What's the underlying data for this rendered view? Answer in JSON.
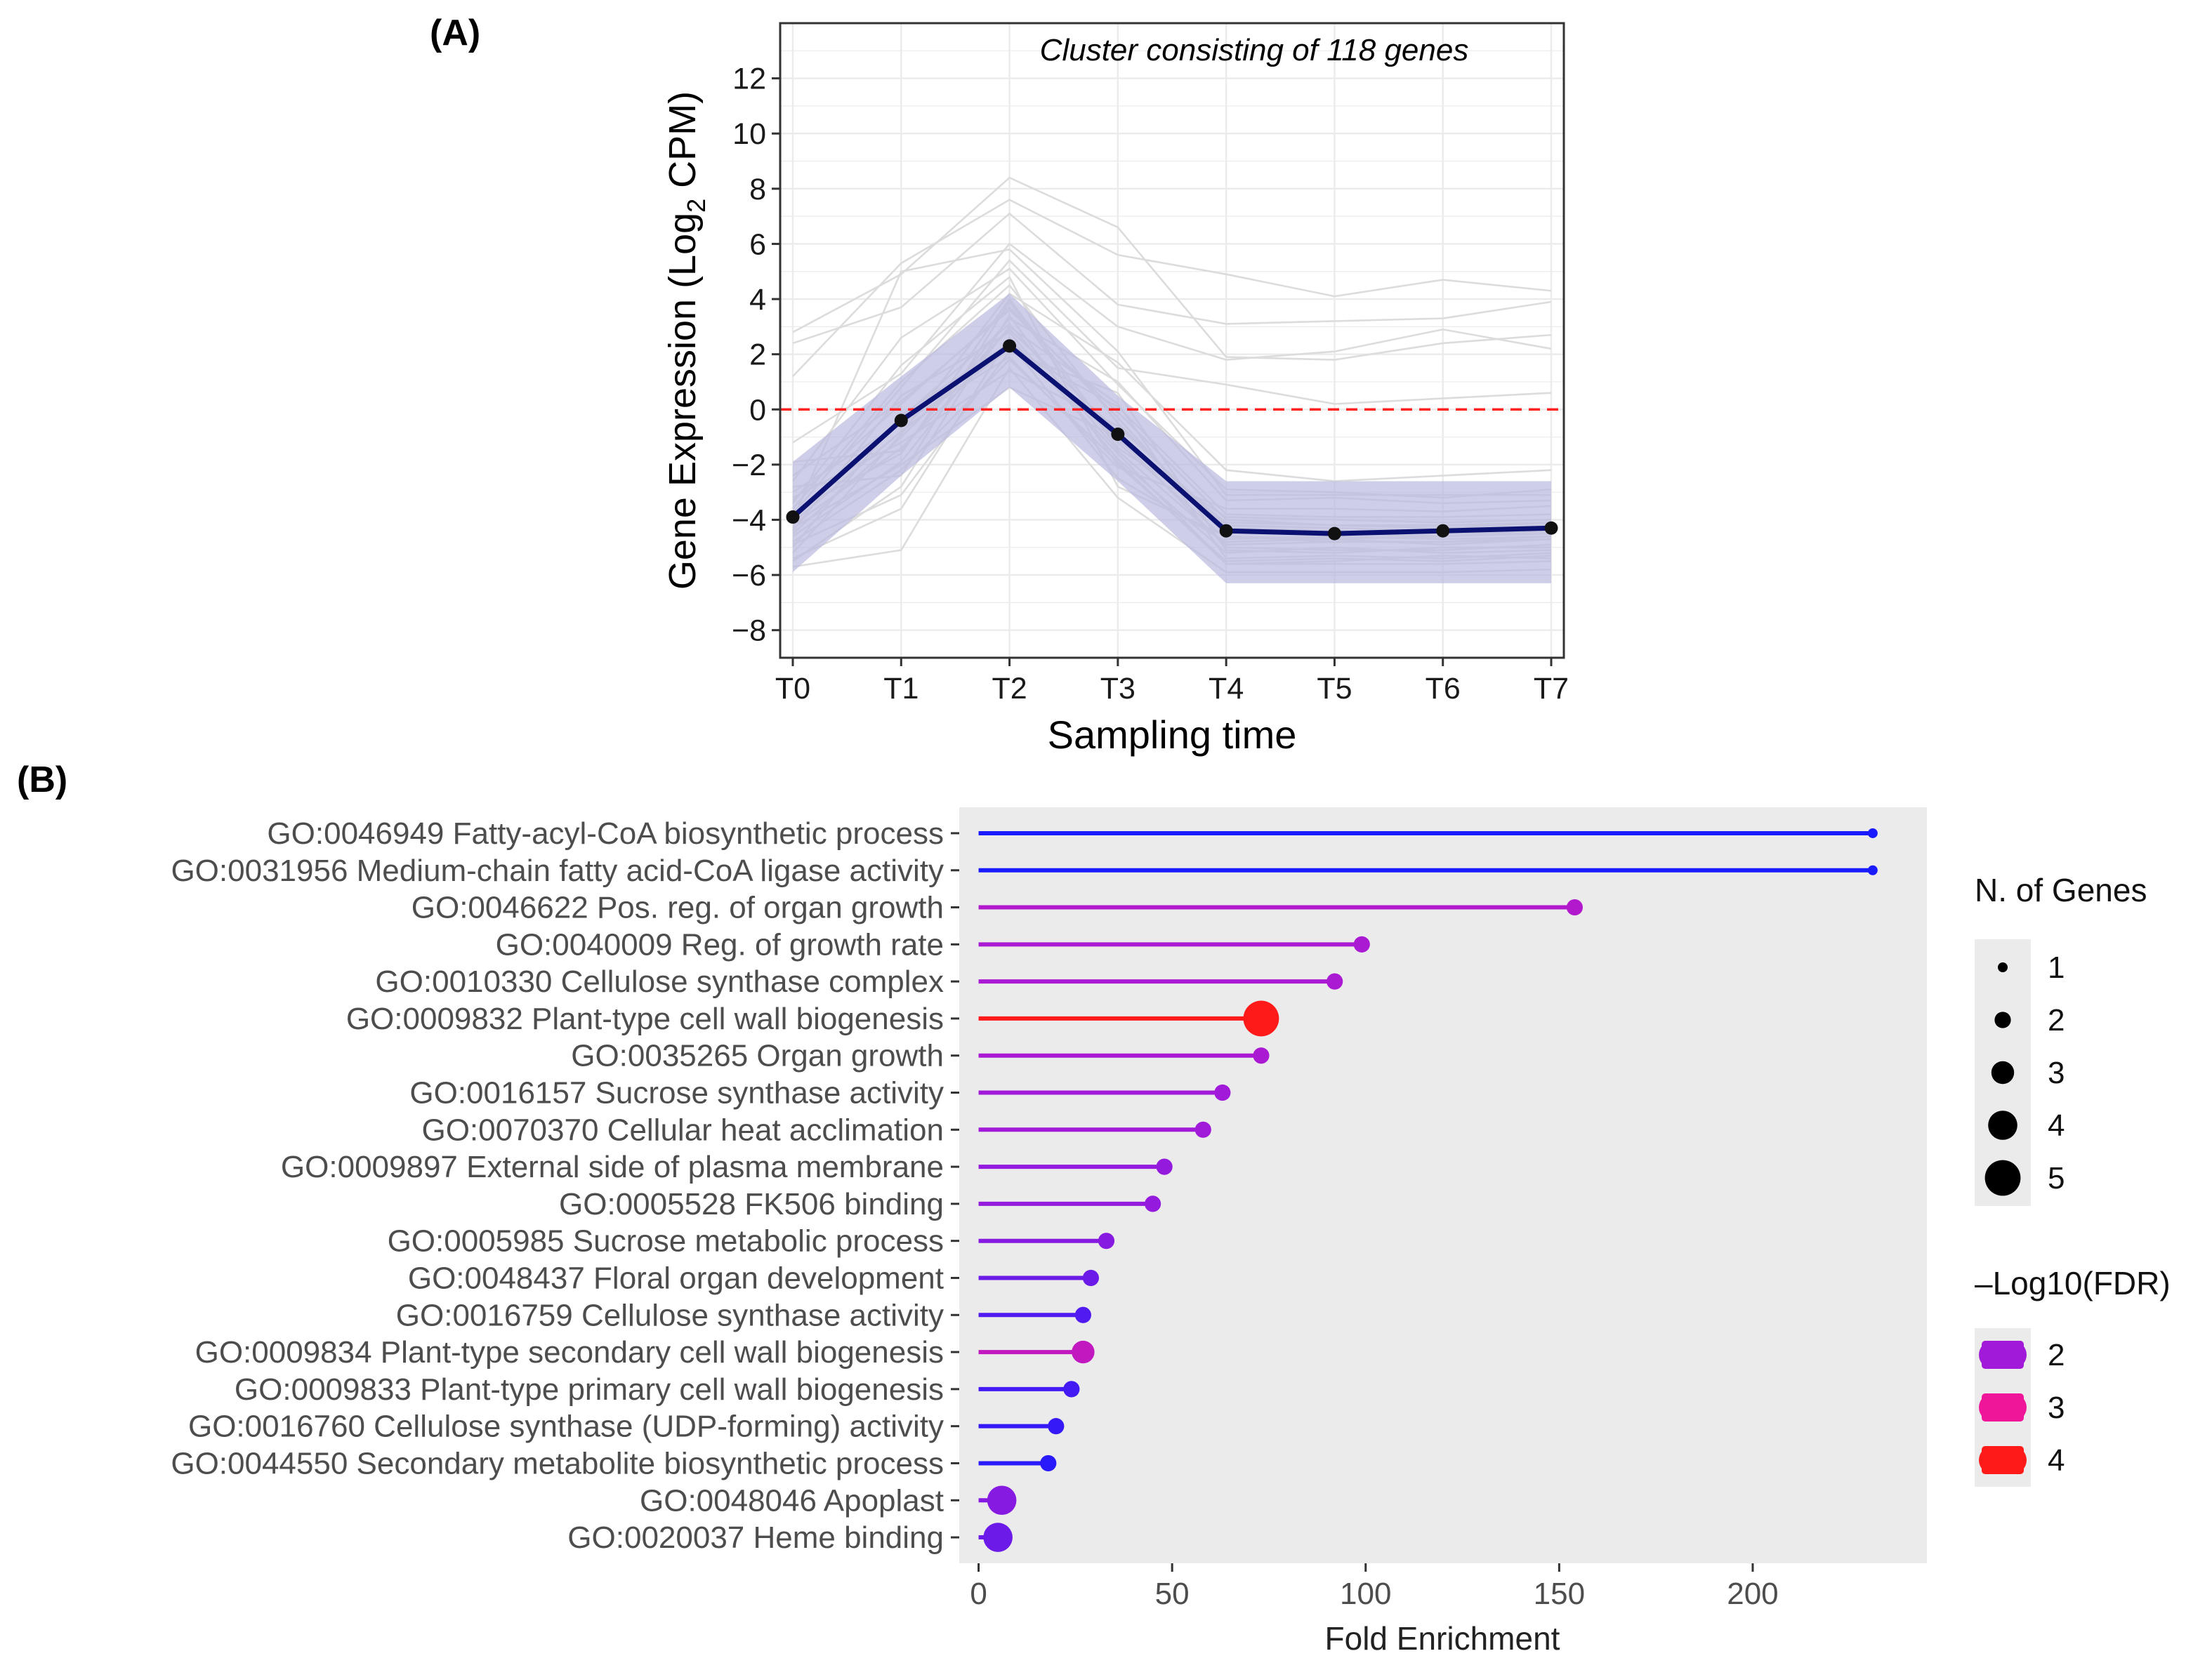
{
  "chart_data": [
    {
      "panel_label": "(A)",
      "type": "line",
      "title": "Cluster consisting of 118 genes",
      "xlabel": "Sampling time",
      "ylabel_prefix": "Gene Expression (Log",
      "ylabel_sub": "2",
      "ylabel_suffix": " CPM)",
      "categories": [
        "T0",
        "T1",
        "T2",
        "T3",
        "T4",
        "T5",
        "T6",
        "T7"
      ],
      "ylim": [
        -9,
        14
      ],
      "yticks": [
        -8,
        -6,
        -4,
        -2,
        0,
        2,
        4,
        6,
        8,
        10,
        12
      ],
      "grid": true,
      "reference_line": {
        "y": 0,
        "color": "#ff2222",
        "style": "dashed"
      },
      "mean_series": {
        "name": "Cluster mean",
        "color": "#0b1170",
        "values": [
          -3.9,
          -0.4,
          2.3,
          -0.9,
          -4.4,
          -4.5,
          -4.4,
          -4.3
        ]
      },
      "band": {
        "color": "#b9b9e0",
        "lower": [
          -5.9,
          -2.4,
          0.8,
          -2.6,
          -6.3,
          -6.3,
          -6.3,
          -6.3
        ],
        "upper": [
          -1.9,
          1.2,
          4.2,
          0.5,
          -2.6,
          -2.6,
          -2.6,
          -2.6
        ]
      },
      "gene_lines": {
        "color": "#dcdcdc",
        "series": [
          [
            2.8,
            4.9,
            8.4,
            6.6,
            1.9,
            1.8,
            2.4,
            2.7
          ],
          [
            1.2,
            5.3,
            7.6,
            5.6,
            4.9,
            4.1,
            4.7,
            4.3
          ],
          [
            2.4,
            3.7,
            7.1,
            3.8,
            3.1,
            3.2,
            3.3,
            3.9
          ],
          [
            -1.2,
            1.3,
            6.0,
            3.0,
            1.8,
            2.1,
            2.9,
            2.2
          ],
          [
            -3.8,
            0.8,
            5.4,
            1.5,
            0.9,
            0.2,
            0.4,
            0.6
          ],
          [
            -4.0,
            5.0,
            5.8,
            2.1,
            -3.1,
            -3.1,
            -3.1,
            -3.1
          ],
          [
            -5.2,
            -0.9,
            4.2,
            1.7,
            -2.2,
            -2.6,
            -2.4,
            -2.2
          ],
          [
            -2.4,
            0.3,
            3.6,
            -0.1,
            -4.0,
            -4.2,
            -4.3,
            -4.1
          ],
          [
            -4.6,
            -1.9,
            3.0,
            0.2,
            -5.4,
            -5.3,
            -5.4,
            -5.2
          ],
          [
            -5.4,
            -3.6,
            2.6,
            -1.6,
            -5.6,
            -5.6,
            -5.6,
            -5.5
          ],
          [
            -3.0,
            -0.5,
            1.9,
            -2.1,
            -3.6,
            -3.6,
            -3.7,
            -3.5
          ],
          [
            -4.3,
            -2.0,
            0.8,
            -1.0,
            -5.0,
            -5.1,
            -5.1,
            -4.9
          ],
          [
            -3.4,
            1.6,
            4.8,
            -2.8,
            -4.6,
            -4.8,
            -4.8,
            -4.6
          ],
          [
            -5.7,
            -5.1,
            1.5,
            -3.2,
            -5.9,
            -5.9,
            -5.9,
            -5.8
          ],
          [
            -1.9,
            -1.5,
            3.3,
            1.0,
            -3.3,
            -3.2,
            -3.4,
            -3.3
          ],
          [
            -4.9,
            -3.1,
            2.1,
            0.6,
            -5.1,
            -5.2,
            -5.0,
            -5.0
          ],
          [
            -3.6,
            1.0,
            4.5,
            -0.5,
            -4.3,
            -4.4,
            -4.5,
            -4.4
          ],
          [
            -5.0,
            -0.2,
            2.4,
            -2.5,
            -4.8,
            -4.7,
            -4.9,
            -4.7
          ],
          [
            -2.8,
            -2.4,
            3.9,
            -1.4,
            -3.9,
            -4.0,
            -4.1,
            -4.0
          ],
          [
            -4.4,
            0.5,
            2.8,
            -1.8,
            -5.2,
            -5.0,
            -5.2,
            -5.1
          ],
          [
            -3.2,
            -1.2,
            1.4,
            -0.6,
            -4.2,
            -4.3,
            -4.4,
            -4.2
          ],
          [
            -5.5,
            -2.8,
            3.4,
            -2.0,
            -5.5,
            -5.4,
            -5.5,
            -5.3
          ],
          [
            -4.1,
            -0.8,
            2.2,
            0.1,
            -3.8,
            -3.9,
            -3.9,
            -3.8
          ],
          [
            -3.7,
            -1.6,
            4.0,
            -1.2,
            -4.7,
            -4.6,
            -4.7,
            -4.6
          ],
          [
            -4.8,
            -2.2,
            1.8,
            -1.9,
            -5.6,
            -5.5,
            -5.3,
            -5.4
          ],
          [
            -2.6,
            2.6,
            5.1,
            0.9,
            -2.9,
            -3.0,
            -3.2,
            -2.9
          ],
          [
            -4.5,
            -1.0,
            2.9,
            -0.8,
            -4.5,
            -4.5,
            -4.6,
            -4.4
          ],
          [
            -3.9,
            -0.3,
            3.1,
            -1.5,
            -4.9,
            -4.8,
            -4.8,
            -4.7
          ],
          [
            -4.2,
            -1.4,
            2.5,
            -1.1,
            -4.1,
            -4.2,
            -4.2,
            -4.1
          ],
          [
            -3.3,
            0.2,
            3.7,
            -0.3,
            -4.6,
            -4.7,
            -4.6,
            -4.5
          ]
        ]
      },
      "tick_font_px": 43
    },
    {
      "panel_label": "(B)",
      "type": "lollipop",
      "xlabel": "Fold Enrichment",
      "xlim": [
        -5,
        245
      ],
      "xticks": [
        0,
        50,
        100,
        150,
        200
      ],
      "categories": [
        "GO:0046949 Fatty-acyl-CoA biosynthetic process",
        "GO:0031956 Medium-chain fatty acid-CoA ligase activity",
        "GO:0046622 Pos. reg. of organ growth",
        "GO:0040009 Reg. of growth rate",
        "GO:0010330 Cellulose synthase complex",
        "GO:0009832 Plant-type cell wall biogenesis",
        "GO:0035265 Organ growth",
        "GO:0016157 Sucrose synthase activity",
        "GO:0070370 Cellular heat acclimation",
        "GO:0009897 External side of plasma membrane",
        "GO:0005528 FK506 binding",
        "GO:0005985 Sucrose metabolic process",
        "GO:0048437 Floral organ development",
        "GO:0016759 Cellulose synthase activity",
        "GO:0009834 Plant-type secondary cell wall biogenesis",
        "GO:0009833 Plant-type primary cell wall biogenesis",
        "GO:0016760 Cellulose synthase (UDP-forming) activity",
        "GO:0044550 Secondary metabolite biosynthetic process",
        "GO:0048046 Apoplast",
        "GO:0020037 Heme binding"
      ],
      "values": [
        231,
        231,
        154,
        99,
        92,
        73,
        73,
        63,
        58,
        48,
        45,
        33,
        29,
        27,
        27,
        24,
        20,
        18,
        6,
        5
      ],
      "n_genes": [
        1,
        1,
        2,
        2,
        2,
        5,
        2,
        2,
        2,
        2,
        2,
        2,
        2,
        2,
        3,
        2,
        2,
        2,
        4,
        4
      ],
      "neg_log10_fdr": [
        1.0,
        1.0,
        2.2,
        2.1,
        2.1,
        4.0,
        2.1,
        2.0,
        2.0,
        1.9,
        1.9,
        1.8,
        1.6,
        1.4,
        2.4,
        1.3,
        1.2,
        1.1,
        1.8,
        1.6
      ],
      "legend_size": {
        "title": "N. of Genes",
        "entries": [
          "1",
          "2",
          "3",
          "4",
          "5"
        ],
        "values": [
          1,
          2,
          3,
          4,
          5
        ]
      },
      "legend_color": {
        "title": "–Log10(FDR)",
        "entries": [
          "2",
          "3",
          "4"
        ],
        "values": [
          2,
          3,
          4
        ]
      },
      "colors": {
        "panel_bg": "#ebebeb",
        "low": "#1a1aff",
        "mid": "#a21ad9",
        "mid2": "#f0169a",
        "high": "#ff1a1a"
      },
      "legend_position": "right"
    }
  ]
}
